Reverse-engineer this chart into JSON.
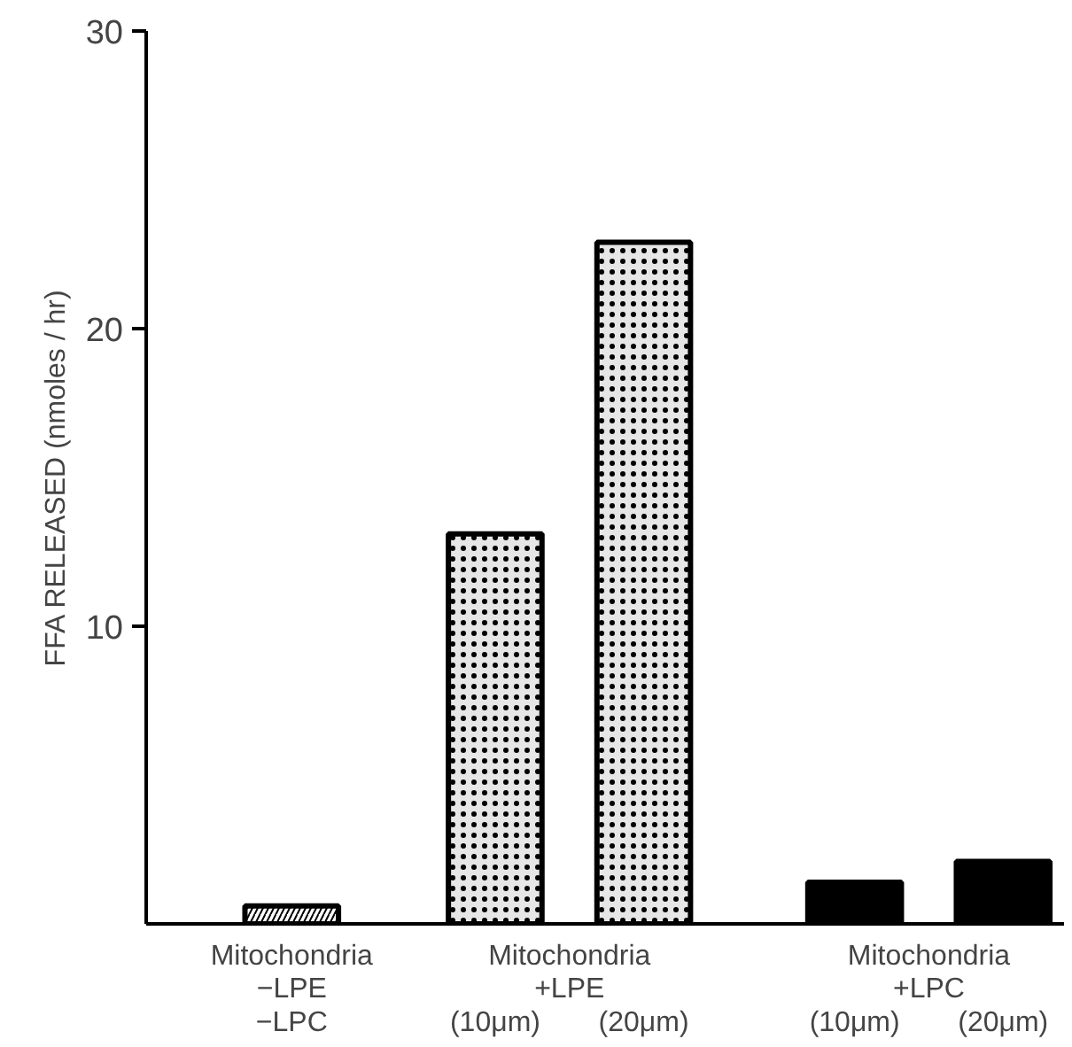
{
  "chart_data": {
    "type": "bar",
    "ylabel": "FFA RELEASED (nmoles / hr)",
    "categories": [
      "Mitochondria\n−LPE\n−LPC",
      "(10μm)",
      "(20μm)",
      "(10μm)",
      "(20μm)"
    ],
    "values": [
      0.6,
      13.1,
      22.9,
      1.4,
      2.1
    ],
    "colors": [
      "#ffffff",
      "#e6e6e6",
      "#e6e6e6",
      "#000000",
      "#000000"
    ],
    "annotations": [
      "Mitochondria\n+LPE",
      "Mitochondria\n+LPC"
    ],
    "ylim": [
      0,
      30
    ],
    "yticks": [
      10,
      20,
      30
    ],
    "grid": false
  }
}
